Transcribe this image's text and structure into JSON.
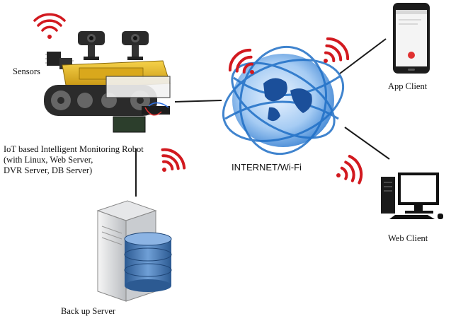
{
  "labels": {
    "sensors": "Sensors",
    "robot_line1": "IoT based Intelligent Monitoring Robot",
    "robot_line2": "(with Linux, Web Server,",
    "robot_line3": "DVR Server, DB Server)",
    "internet": "INTERNET/Wi-Fi",
    "app_client": "App Client",
    "web_client": "Web Client",
    "backup_server": "Back up Server"
  },
  "icons": {
    "wifi": "wifi-signal-icon",
    "robot": "robot-icon",
    "camera": "webcam-icon",
    "globe": "globe-icon",
    "phone": "smartphone-icon",
    "desktop": "desktop-computer-icon",
    "server": "server-tower-icon",
    "database": "database-icon"
  },
  "colors": {
    "wifi_red": "#d2191f",
    "globe_blue": "#1f6fc6",
    "robot_yellow": "#e8b820",
    "db_blue": "#3f6fa8",
    "line": "#1a1a1a"
  }
}
